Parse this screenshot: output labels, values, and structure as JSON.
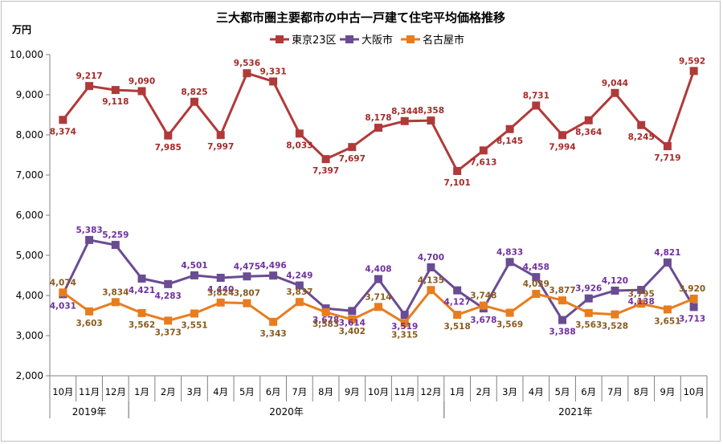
{
  "chart_data": {
    "type": "line",
    "title": "三大都市圏主要都市の中古一戸建て住宅平均価格推移",
    "ylabel": "万円",
    "ylim": [
      2000,
      10000
    ],
    "yticks": [
      "2,000",
      "3,000",
      "4,000",
      "5,000",
      "6,000",
      "7,000",
      "8,000",
      "9,000",
      "10,000"
    ],
    "categories": [
      "10月",
      "11月",
      "12月",
      "1月",
      "2月",
      "3月",
      "4月",
      "5月",
      "6月",
      "7月",
      "8月",
      "9月",
      "10月",
      "11月",
      "12月",
      "1月",
      "2月",
      "3月",
      "4月",
      "5月",
      "6月",
      "7月",
      "8月",
      "9月",
      "10月"
    ],
    "years": [
      {
        "label": "2019年",
        "start": 0,
        "end": 2
      },
      {
        "label": "2020年",
        "start": 3,
        "end": 14
      },
      {
        "label": "2021年",
        "start": 15,
        "end": 24
      }
    ],
    "legend_position": "top-center",
    "series": [
      {
        "name": "東京23区",
        "color": "#b03a3a",
        "label_color": "#a52a2a",
        "values": [
          8374,
          9217,
          9118,
          9090,
          7985,
          8825,
          7997,
          9536,
          9331,
          8033,
          7397,
          7697,
          8178,
          8344,
          8358,
          7101,
          7613,
          8145,
          8731,
          7994,
          8364,
          9044,
          8245,
          7719,
          9592
        ],
        "labels": [
          "8,374",
          "9,217",
          "9,118",
          "9,090",
          "7,985",
          "8,825",
          "7,997",
          "9,536",
          "9,331",
          "8,033",
          "7,397",
          "7,697",
          "8,178",
          "8,344",
          "8,358",
          "7,101",
          "7,613",
          "8,145",
          "8,731",
          "7,994",
          "8,364",
          "9,044",
          "8,245",
          "7,719",
          "9,592"
        ]
      },
      {
        "name": "大阪市",
        "color": "#6a4c93",
        "label_color": "#7030a0",
        "values": [
          4031,
          5383,
          5259,
          4421,
          4283,
          4501,
          4440,
          4475,
          4496,
          4249,
          3678,
          3614,
          4408,
          3519,
          4700,
          4127,
          3678,
          4833,
          4458,
          3388,
          3926,
          4120,
          4138,
          4821,
          3713
        ],
        "labels": [
          "4,031",
          "5,383",
          "5,259",
          "4,421",
          "4,283",
          "4,501",
          "4,440",
          "4,475",
          "4,496",
          "4,249",
          "3,678",
          "3,614",
          "4,408",
          "3,519",
          "4,700",
          "4,127",
          "3,678",
          "4,833",
          "4,458",
          "3,388",
          "3,926",
          "4,120",
          "4,138",
          "4,821",
          "3,713"
        ]
      },
      {
        "name": "名古屋市",
        "color": "#e87d1e",
        "label_color": "#8a5a1f",
        "values": [
          4074,
          3603,
          3834,
          3562,
          3373,
          3551,
          3824,
          3807,
          3343,
          3837,
          3583,
          3402,
          3714,
          3315,
          4135,
          3518,
          3748,
          3569,
          4039,
          3877,
          3563,
          3528,
          3795,
          3651,
          3920
        ],
        "labels": [
          "4,074",
          "3,603",
          "3,834",
          "3,562",
          "3,373",
          "3,551",
          "3,824",
          "3,807",
          "3,343",
          "3,837",
          "3,583",
          "3,402",
          "3,714",
          "3,315",
          "4,135",
          "3,518",
          "3,748",
          "3,569",
          "4,039",
          "3,877",
          "3,563",
          "3,528",
          "3,795",
          "3,651",
          "3,920"
        ]
      }
    ]
  }
}
